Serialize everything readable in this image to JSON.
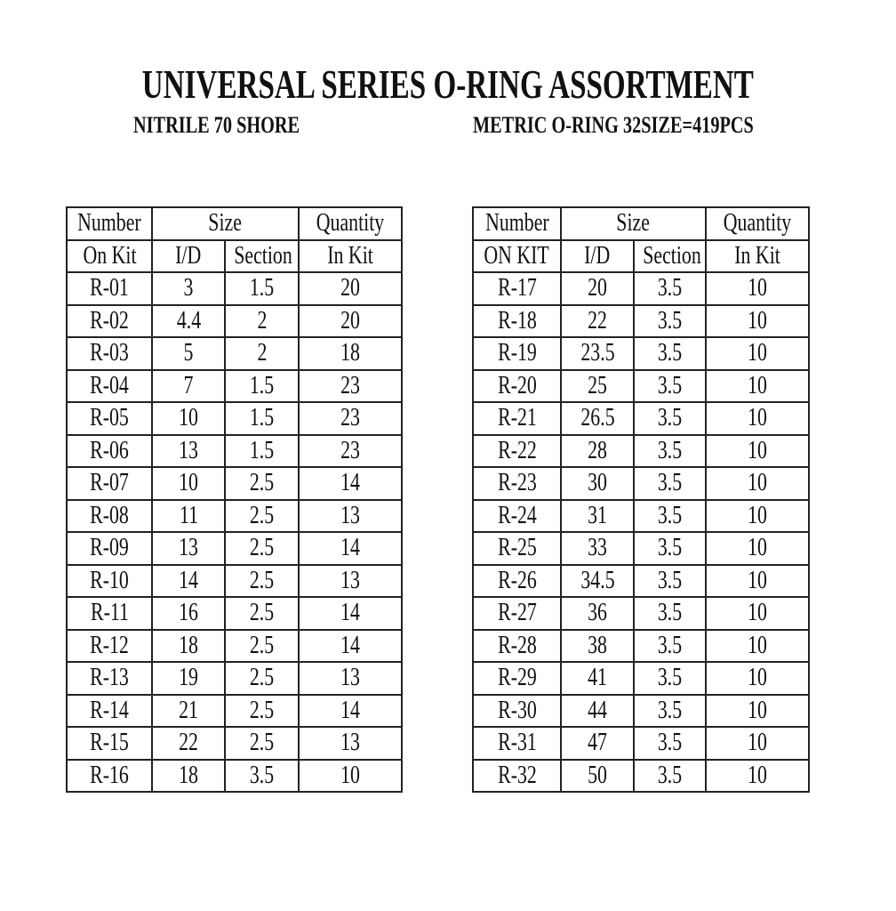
{
  "title": "UNIVERSAL SERIES O-RING ASSORTMENT",
  "subtitle_left": "NITRILE 70 SHORE",
  "subtitle_right": "METRIC O-RING 32SIZE=419PCS",
  "tables": [
    {
      "header1": [
        "Number",
        "Size",
        "Quantity"
      ],
      "header2": [
        "On Kit",
        "I/D",
        "Section",
        "In Kit"
      ],
      "rows": [
        [
          "R-01",
          "3",
          "1.5",
          "20"
        ],
        [
          "R-02",
          "4.4",
          "2",
          "20"
        ],
        [
          "R-03",
          "5",
          "2",
          "18"
        ],
        [
          "R-04",
          "7",
          "1.5",
          "23"
        ],
        [
          "R-05",
          "10",
          "1.5",
          "23"
        ],
        [
          "R-06",
          "13",
          "1.5",
          "23"
        ],
        [
          "R-07",
          "10",
          "2.5",
          "14"
        ],
        [
          "R-08",
          "11",
          "2.5",
          "13"
        ],
        [
          "R-09",
          "13",
          "2.5",
          "14"
        ],
        [
          "R-10",
          "14",
          "2.5",
          "13"
        ],
        [
          "R-11",
          "16",
          "2.5",
          "14"
        ],
        [
          "R-12",
          "18",
          "2.5",
          "14"
        ],
        [
          "R-13",
          "19",
          "2.5",
          "13"
        ],
        [
          "R-14",
          "21",
          "2.5",
          "14"
        ],
        [
          "R-15",
          "22",
          "2.5",
          "13"
        ],
        [
          "R-16",
          "18",
          "3.5",
          "10"
        ]
      ]
    },
    {
      "header1": [
        "Number",
        "Size",
        "Quantity"
      ],
      "header2": [
        "ON KIT",
        "I/D",
        "Section",
        "In Kit"
      ],
      "rows": [
        [
          "R-17",
          "20",
          "3.5",
          "10"
        ],
        [
          "R-18",
          "22",
          "3.5",
          "10"
        ],
        [
          "R-19",
          "23.5",
          "3.5",
          "10"
        ],
        [
          "R-20",
          "25",
          "3.5",
          "10"
        ],
        [
          "R-21",
          "26.5",
          "3.5",
          "10"
        ],
        [
          "R-22",
          "28",
          "3.5",
          "10"
        ],
        [
          "R-23",
          "30",
          "3.5",
          "10"
        ],
        [
          "R-24",
          "31",
          "3.5",
          "10"
        ],
        [
          "R-25",
          "33",
          "3.5",
          "10"
        ],
        [
          "R-26",
          "34.5",
          "3.5",
          "10"
        ],
        [
          "R-27",
          "36",
          "3.5",
          "10"
        ],
        [
          "R-28",
          "38",
          "3.5",
          "10"
        ],
        [
          "R-29",
          "41",
          "3.5",
          "10"
        ],
        [
          "R-30",
          "44",
          "3.5",
          "10"
        ],
        [
          "R-31",
          "47",
          "3.5",
          "10"
        ],
        [
          "R-32",
          "50",
          "3.5",
          "10"
        ]
      ]
    }
  ]
}
